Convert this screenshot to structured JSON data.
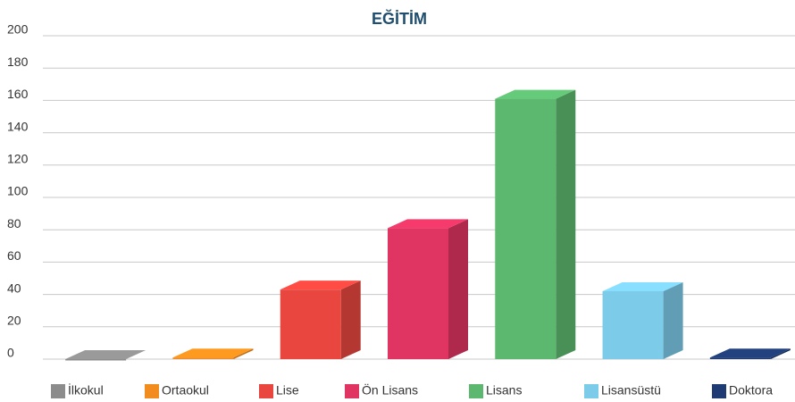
{
  "chart_data": {
    "type": "bar3d",
    "title": "EĞİTİM",
    "categories": [
      "İlkokul",
      "Ortaokul",
      "Lise",
      "Ön Lisans",
      "Lisans",
      "Lisansüstü",
      "Doktora"
    ],
    "values": [
      0,
      1,
      43,
      81,
      161,
      42,
      1
    ],
    "colors": [
      "#8c8c8c",
      "#f28c1e",
      "#e8463f",
      "#e03562",
      "#5cb86e",
      "#7ccbe8",
      "#1f3b73"
    ],
    "ylim": [
      0,
      200
    ],
    "yticks": [
      0,
      20,
      40,
      60,
      80,
      100,
      120,
      140,
      160,
      180,
      200
    ],
    "grid": true,
    "legend": "bottom"
  }
}
